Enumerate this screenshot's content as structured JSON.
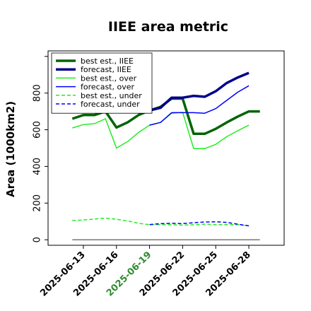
{
  "chart_data": {
    "type": "line",
    "title": "IIEE area metric",
    "ylabel": "Area (1000km2)",
    "xlabel": "",
    "ylim": [
      -30,
      1030
    ],
    "yticks": [
      0,
      200,
      400,
      600,
      800
    ],
    "grid": false,
    "legend_position": "upper-left",
    "x_tick_labels": [
      {
        "label": "2025-06-13",
        "day": 13,
        "color": "#000000"
      },
      {
        "label": "2025-06-16",
        "day": 16,
        "color": "#000000"
      },
      {
        "label": "2025-06-19",
        "day": 19,
        "color": "#2e8b2e"
      },
      {
        "label": "2025-06-22",
        "day": 22,
        "color": "#000000"
      },
      {
        "label": "2025-06-25",
        "day": 25,
        "color": "#000000"
      },
      {
        "label": "2025-06-28",
        "day": 28,
        "color": "#000000"
      }
    ],
    "zero_line": {
      "x_start": 12,
      "x_end": 29,
      "y": 0,
      "color": "#777777"
    },
    "series": [
      {
        "name": "best est., IIEE",
        "color": "#006400",
        "width": 3.5,
        "dash": "solid",
        "x": [
          12,
          13,
          14,
          15,
          16,
          17,
          18,
          19,
          20,
          21,
          22,
          23,
          24,
          25,
          26,
          27,
          28,
          29
        ],
        "y": [
          660,
          680,
          680,
          700,
          612,
          640,
          680,
          705,
          725,
          770,
          770,
          578,
          578,
          605,
          640,
          672,
          700,
          700
        ]
      },
      {
        "name": "forecast, IIEE",
        "color": "#00008b",
        "width": 3.5,
        "dash": "solid",
        "x": [
          19,
          20,
          21,
          22,
          23,
          24,
          25,
          26,
          27,
          28
        ],
        "y": [
          705,
          720,
          775,
          775,
          785,
          780,
          810,
          855,
          885,
          910
        ]
      },
      {
        "name": "best est., over",
        "color": "#22ee22",
        "width": 1.5,
        "dash": "solid",
        "x": [
          12,
          13,
          14,
          15,
          16,
          17,
          18,
          19,
          20,
          21,
          22,
          23,
          24,
          25,
          26,
          27,
          28
        ],
        "y": [
          610,
          628,
          633,
          660,
          500,
          535,
          585,
          625,
          640,
          690,
          695,
          497,
          497,
          520,
          562,
          595,
          625
        ]
      },
      {
        "name": "forecast, over",
        "color": "#0000ff",
        "width": 1.5,
        "dash": "solid",
        "x": [
          19,
          20,
          21,
          22,
          23,
          24,
          25,
          26,
          27,
          28
        ],
        "y": [
          625,
          640,
          693,
          693,
          693,
          690,
          715,
          760,
          805,
          840
        ]
      },
      {
        "name": "best est., under",
        "color": "#22ee22",
        "width": 1.5,
        "dash": "dashed",
        "x": [
          12,
          13,
          14,
          15,
          16,
          17,
          18,
          19,
          20,
          21,
          22,
          23,
          24,
          25,
          26,
          27,
          28
        ],
        "y": [
          105,
          108,
          113,
          118,
          112,
          103,
          90,
          82,
          82,
          82,
          80,
          82,
          85,
          83,
          83,
          82,
          76
        ]
      },
      {
        "name": "forecast, under",
        "color": "#0000ff",
        "width": 1.5,
        "dash": "dashed",
        "x": [
          19,
          20,
          21,
          22,
          23,
          24,
          25,
          26,
          27,
          28
        ],
        "y": [
          83,
          88,
          90,
          88,
          93,
          97,
          98,
          95,
          85,
          76
        ]
      }
    ]
  }
}
